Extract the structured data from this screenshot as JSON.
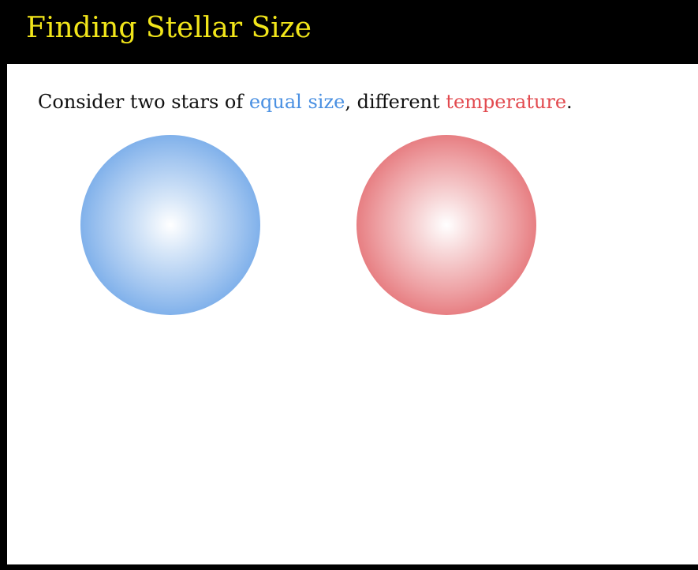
{
  "slide": {
    "title": "Finding Stellar Size",
    "intro": {
      "before": "Consider two stars of ",
      "highlight_size": "equal size",
      "middle": ", different ",
      "highlight_temperature": "temperature",
      "after": "."
    }
  },
  "colors": {
    "title": "#f1e51a",
    "cool_star": "#4a90e2",
    "hot_star": "#e24a4f",
    "background": "#ffffff",
    "frame": "#000000"
  },
  "stars": [
    {
      "name": "blue-star",
      "color": "#4a90e2"
    },
    {
      "name": "red-star",
      "color": "#dc474c"
    }
  ]
}
